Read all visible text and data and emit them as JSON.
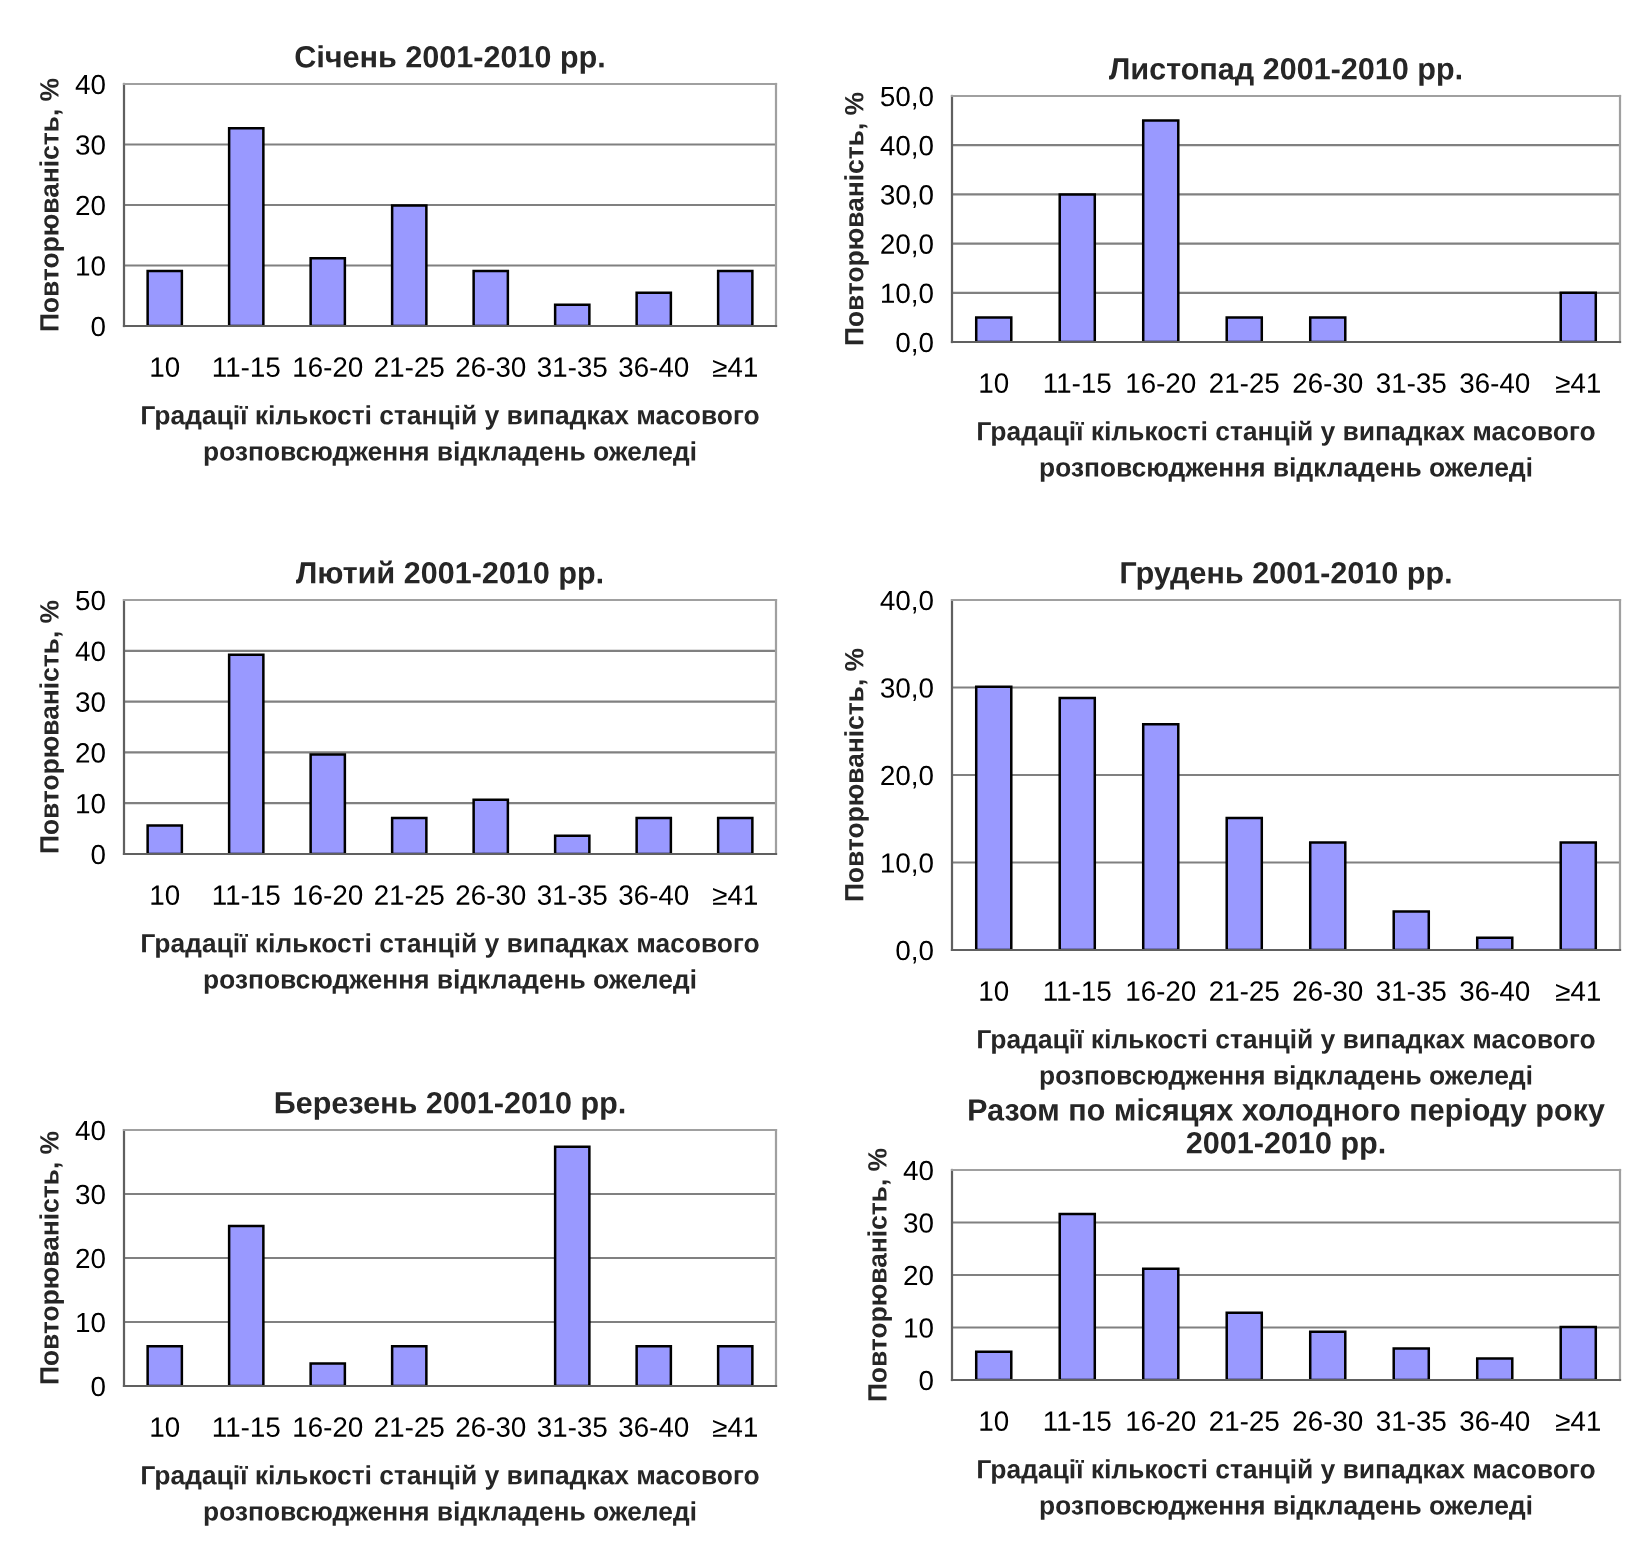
{
  "chart_data": [
    {
      "type": "bar",
      "title": "Січень 2001-2010 рр.",
      "xlabel": "Градації кількості станцій у випадках масового\nрозповсюдження відкладень ожеледі",
      "ylabel": "Повторюваність, %",
      "categories": [
        "10",
        "11-15",
        "16-20",
        "21-25",
        "26-30",
        "31-35",
        "36-40",
        "≥41"
      ],
      "values": [
        9.1,
        32.7,
        11.2,
        19.9,
        9.1,
        3.5,
        5.5,
        9.1
      ],
      "color": "#9999ff",
      "ylim": [
        0,
        40
      ],
      "yticks": [
        0,
        10,
        20,
        30,
        40
      ],
      "grid": "y"
    },
    {
      "type": "bar",
      "title": "Листопад 2001-2010 рр.",
      "xlabel": "Градації кількості станцій у випадках масового\nрозповсюдження відкладень ожеледі",
      "ylabel": "Повторюваність, %",
      "categories": [
        "10",
        "11-15",
        "16-20",
        "21-25",
        "26-30",
        "31-35",
        "36-40",
        "≥41"
      ],
      "values": [
        5,
        30,
        45,
        5,
        5,
        0,
        0,
        10
      ],
      "color": "#9999ff",
      "ylim": [
        0,
        50
      ],
      "yticks": [
        {
          "value": 0,
          "label": "0,0"
        },
        {
          "value": 10,
          "label": "10,0"
        },
        {
          "value": 20,
          "label": "20,0"
        },
        {
          "value": 30,
          "label": "30,0"
        },
        {
          "value": 40,
          "label": "40,0"
        },
        {
          "value": 50,
          "label": "50,0"
        }
      ],
      "grid": "y"
    },
    {
      "type": "bar",
      "title": "Лютий 2001-2010 рр.",
      "xlabel": "Градації кількості станцій у випадках масового\nрозповсюдження відкладень ожеледі",
      "ylabel": "Повторюваність, %",
      "categories": [
        "10",
        "11-15",
        "16-20",
        "21-25",
        "26-30",
        "31-35",
        "36-40",
        "≥41"
      ],
      "values": [
        5.6,
        39.2,
        19.6,
        7.1,
        10.7,
        3.6,
        7.1,
        7.1
      ],
      "color": "#9999ff",
      "ylim": [
        0,
        50
      ],
      "yticks": [
        0,
        10,
        20,
        30,
        40,
        50
      ],
      "grid": "y"
    },
    {
      "type": "bar",
      "title": "Грудень 2001-2010 рр.",
      "xlabel": "Градації кількості станцій у випадках масового\nрозповсюдження відкладень ожеледі",
      "ylabel": "Повторюваність, %",
      "categories": [
        "10",
        "11-15",
        "16-20",
        "21-25",
        "26-30",
        "31-35",
        "36-40",
        "≥41"
      ],
      "values": [
        30.1,
        28.8,
        25.8,
        15.1,
        12.3,
        4.4,
        1.4,
        12.3
      ],
      "color": "#9999ff",
      "ylim": [
        0,
        40
      ],
      "yticks": [
        {
          "value": 0,
          "label": "0,0"
        },
        {
          "value": 10,
          "label": "10,0"
        },
        {
          "value": 20,
          "label": "20,0"
        },
        {
          "value": 30,
          "label": "30,0"
        },
        {
          "value": 40,
          "label": "40,0"
        }
      ],
      "grid": "y"
    },
    {
      "type": "bar",
      "title": "Березень 2001-2010 рр.",
      "xlabel": "Градації кількості станцій у випадках масового\nрозповсюдження відкладень ожеледі",
      "ylabel": "Повторюваність, %",
      "categories": [
        "10",
        "11-15",
        "16-20",
        "21-25",
        "26-30",
        "31-35",
        "36-40",
        "≥41"
      ],
      "values": [
        6.2,
        25,
        3.5,
        6.2,
        0,
        37.4,
        6.2,
        6.2
      ],
      "color": "#9999ff",
      "ylim": [
        0,
        40
      ],
      "yticks": [
        0,
        10,
        20,
        30,
        40
      ],
      "grid": "y"
    },
    {
      "type": "bar",
      "title": "Разом по місяцях холодного періоду року\n2001-2010 рр.",
      "xlabel": "Градації кількості станцій у випадках масового\nрозповсюдження відкладень ожеледі",
      "ylabel": "Повторюваність, %",
      "categories": [
        "10",
        "11-15",
        "16-20",
        "21-25",
        "26-30",
        "31-35",
        "36-40",
        "≥41"
      ],
      "values": [
        5.4,
        31.6,
        21.2,
        12.8,
        9.2,
        6.0,
        4.1,
        10.1
      ],
      "color": "#9999ff",
      "ylim": [
        0,
        40
      ],
      "yticks": [
        0,
        10,
        20,
        30,
        40
      ],
      "grid": "y"
    }
  ]
}
